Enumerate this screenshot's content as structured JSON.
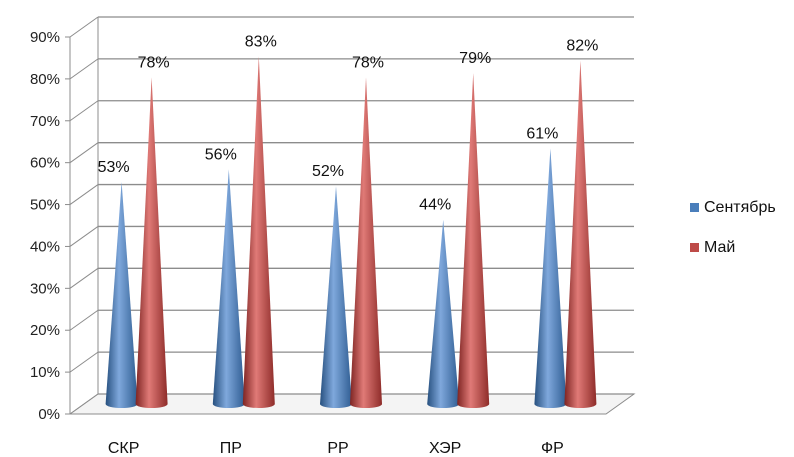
{
  "chart_data": {
    "type": "bar",
    "style": "3d-cone",
    "categories": [
      "СКР",
      "ПР",
      "РР",
      "ХЭР",
      "ФР"
    ],
    "series": [
      {
        "name": "Сентябрь",
        "values": [
          53,
          56,
          52,
          44,
          61
        ],
        "labels": [
          "53%",
          "56%",
          "52%",
          "44%",
          "61%"
        ],
        "color": "#4a7ebb"
      },
      {
        "name": "Май",
        "values": [
          78,
          83,
          78,
          79,
          82
        ],
        "labels": [
          "78%",
          "83%",
          "78%",
          "79%",
          "82%"
        ],
        "color": "#be4b48"
      }
    ],
    "ylim": [
      0,
      90
    ],
    "yticks": [
      "0%",
      "10%",
      "20%",
      "30%",
      "40%",
      "50%",
      "60%",
      "70%",
      "80%",
      "90%"
    ],
    "grid": true,
    "legend_position": "right"
  }
}
